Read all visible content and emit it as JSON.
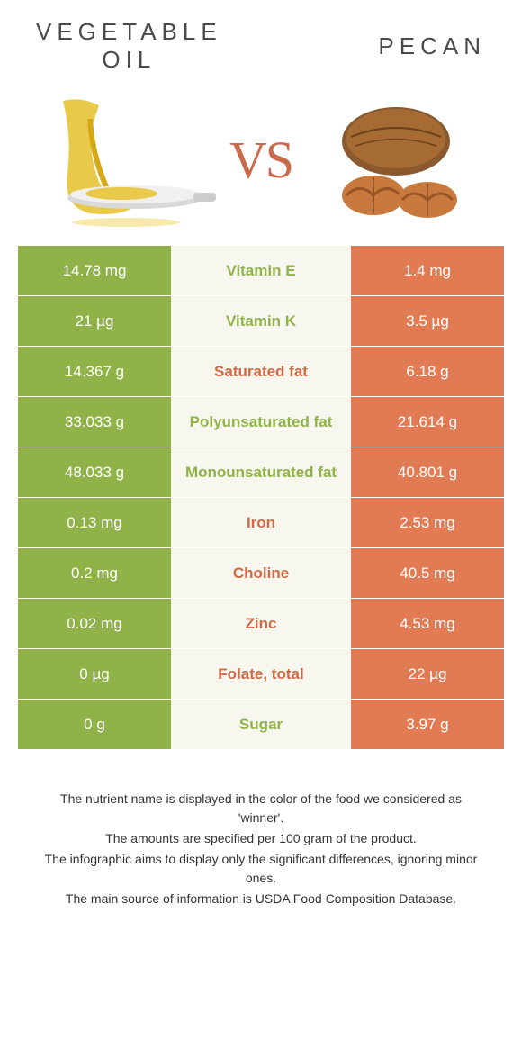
{
  "colors": {
    "left": "#8fb249",
    "right": "#e07b54",
    "mid_bg": "#f7f7ef",
    "mid_text_left": "#8fb249",
    "mid_text_right": "#cf6a47",
    "vs": "#c96a4a",
    "title": "#4a4a4a",
    "cell_text": "#ffffff",
    "footnote": "#333333"
  },
  "left_food": {
    "title": "VEGETABLE\nOIL"
  },
  "right_food": {
    "title": "PECAN"
  },
  "vs": "VS",
  "rows": [
    {
      "left": "14.78 mg",
      "label": "Vitamin E",
      "right": "1.4 mg",
      "winner": "left"
    },
    {
      "left": "21 µg",
      "label": "Vitamin K",
      "right": "3.5 µg",
      "winner": "left"
    },
    {
      "left": "14.367 g",
      "label": "Saturated fat",
      "right": "6.18 g",
      "winner": "right"
    },
    {
      "left": "33.033 g",
      "label": "Polyunsaturated fat",
      "right": "21.614 g",
      "winner": "left"
    },
    {
      "left": "48.033 g",
      "label": "Monounsaturated fat",
      "right": "40.801 g",
      "winner": "left"
    },
    {
      "left": "0.13 mg",
      "label": "Iron",
      "right": "2.53 mg",
      "winner": "right"
    },
    {
      "left": "0.2 mg",
      "label": "Choline",
      "right": "40.5 mg",
      "winner": "right"
    },
    {
      "left": "0.02 mg",
      "label": "Zinc",
      "right": "4.53 mg",
      "winner": "right"
    },
    {
      "left": "0 µg",
      "label": "Folate, total",
      "right": "22 µg",
      "winner": "right"
    },
    {
      "left": "0 g",
      "label": "Sugar",
      "right": "3.97 g",
      "winner": "left"
    }
  ],
  "footnotes": [
    "The nutrient name is displayed in the color of the food we considered as 'winner'.",
    "The amounts are specified per 100 gram of the product.",
    "The infographic aims to display only the significant differences, ignoring minor ones.",
    "The main source of information is USDA Food Composition Database."
  ]
}
